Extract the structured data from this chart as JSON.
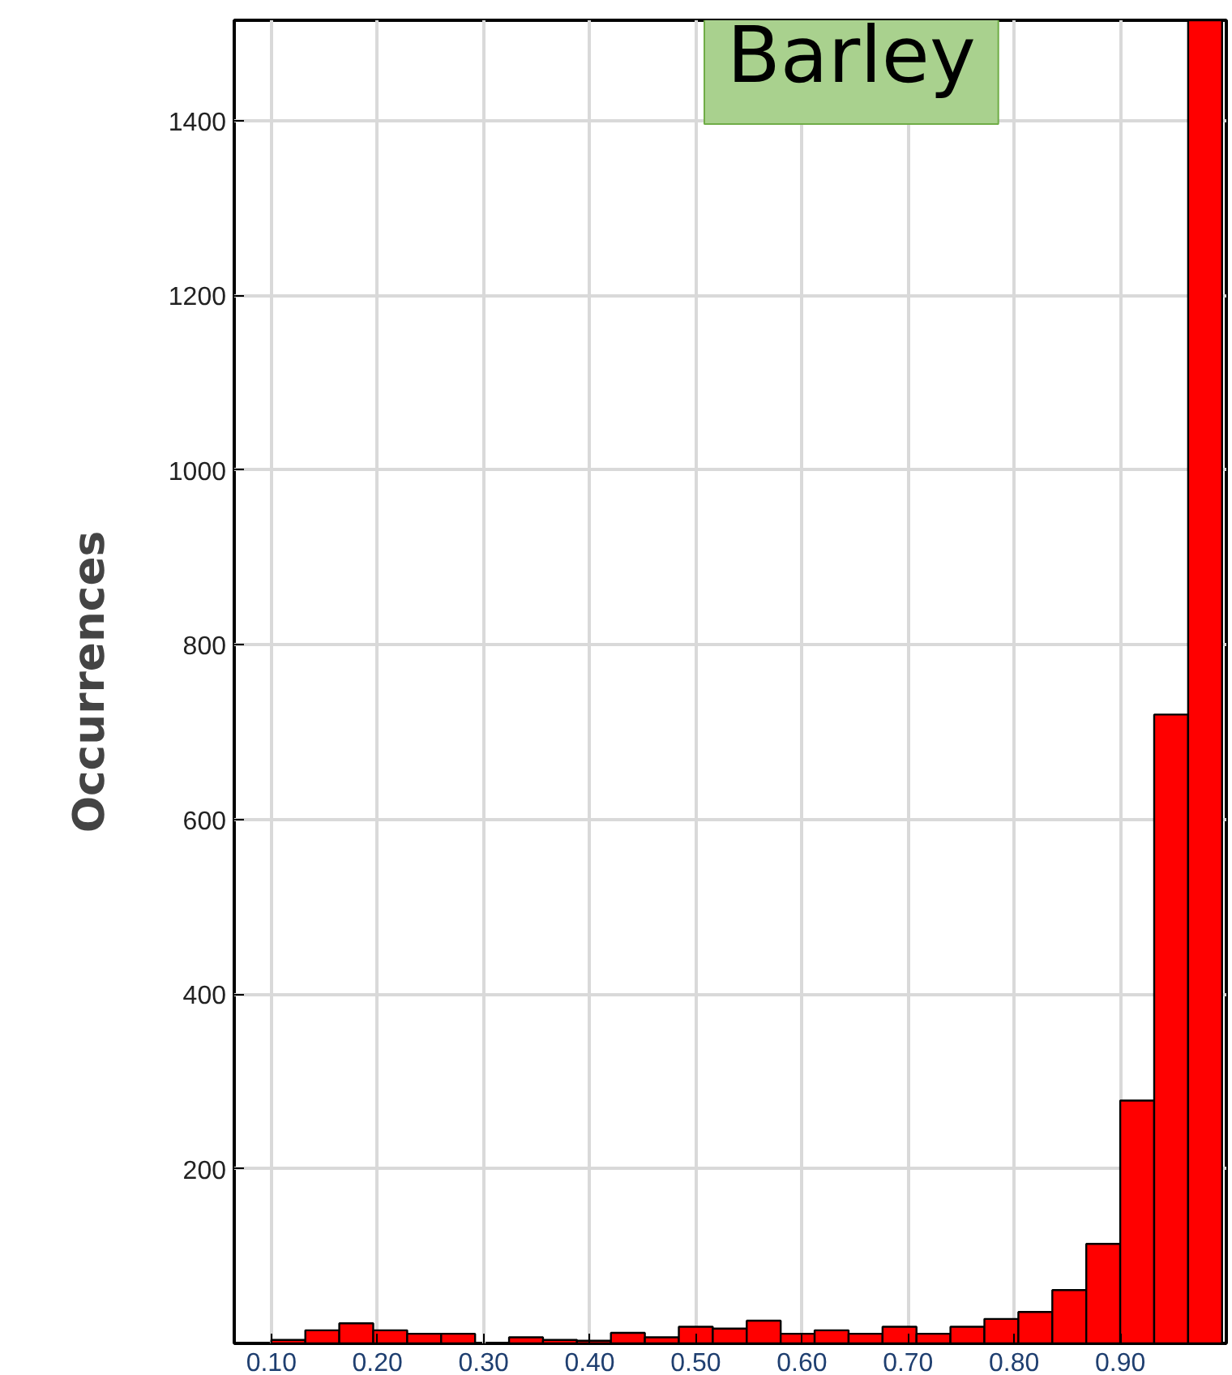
{
  "chart_data": {
    "type": "histogram",
    "title": "Barley",
    "ylabel": "Occurrences",
    "bins": [
      0.1,
      0.132,
      0.164,
      0.196,
      0.228,
      0.26,
      0.292,
      0.324,
      0.356,
      0.388,
      0.42,
      0.452,
      0.484,
      0.516,
      0.548,
      0.58,
      0.612,
      0.644,
      0.676,
      0.708,
      0.74,
      0.772,
      0.804,
      0.836,
      0.868,
      0.9,
      0.932,
      0.964,
      0.996
    ],
    "values": [
      4,
      15,
      23,
      15,
      11,
      11,
      null,
      7,
      4,
      3,
      12,
      7,
      19,
      17,
      26,
      11,
      15,
      11,
      19,
      11,
      19,
      28,
      36,
      61,
      114,
      278,
      720,
      1515
    ],
    "color": "#ff0000",
    "xlim": [
      0.065,
      1.0
    ],
    "ylim": [
      0,
      1515
    ],
    "xticks": [
      {
        "value": 0.1,
        "label": "0.10"
      },
      {
        "value": 0.2,
        "label": "0.20"
      },
      {
        "value": 0.3,
        "label": "0.30"
      },
      {
        "value": 0.4,
        "label": "0.40"
      },
      {
        "value": 0.5,
        "label": "0.50"
      },
      {
        "value": 0.6,
        "label": "0.60"
      },
      {
        "value": 0.7,
        "label": "0.70"
      },
      {
        "value": 0.8,
        "label": "0.80"
      },
      {
        "value": 0.9,
        "label": "0.90"
      }
    ],
    "yticks": [
      200,
      400,
      600,
      800,
      1000,
      1200,
      1400
    ],
    "grid": true
  }
}
